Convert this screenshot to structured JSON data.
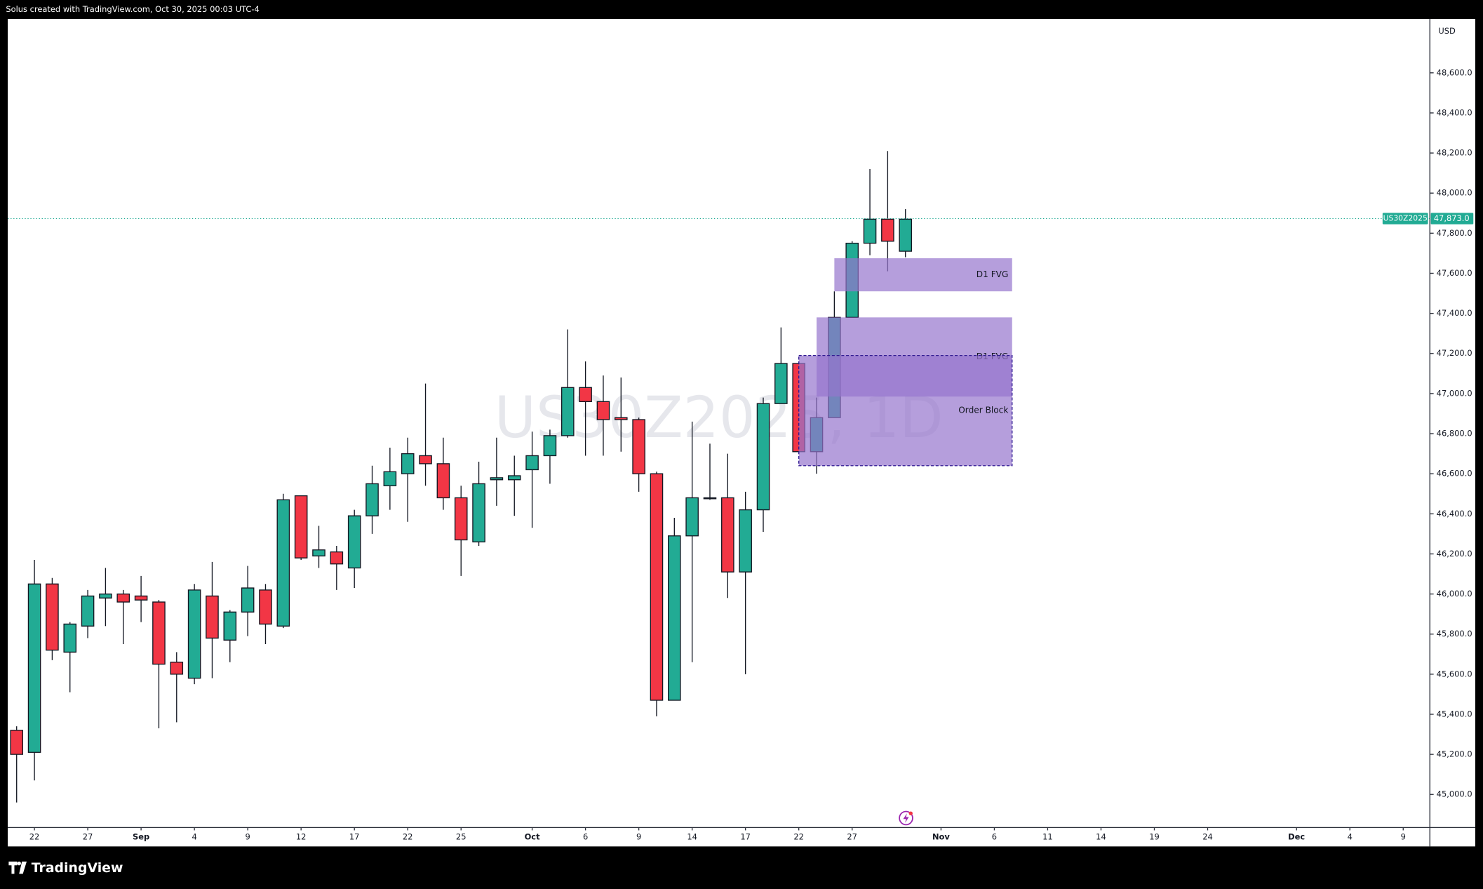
{
  "header": "Solus created with TradingView.com, Oct 30, 2025 00:03 UTC-4",
  "brand": "TradingView",
  "chart_data": {
    "type": "candlestick",
    "watermark": "US30Z2025, 1D",
    "currency": "USD",
    "symbol": "US30Z2025",
    "up_color": "#22ab94",
    "down_color": "#f23645",
    "x": [
      "2025-08-21",
      "2025-08-22",
      "2025-08-25",
      "2025-08-26",
      "2025-08-27",
      "2025-08-28",
      "2025-08-29",
      "2025-09-01",
      "2025-09-02",
      "2025-09-03",
      "2025-09-04",
      "2025-09-05",
      "2025-09-08",
      "2025-09-09",
      "2025-09-10",
      "2025-09-11",
      "2025-09-12",
      "2025-09-15",
      "2025-09-16",
      "2025-09-17",
      "2025-09-18",
      "2025-09-19",
      "2025-09-22",
      "2025-09-23",
      "2025-09-24",
      "2025-09-25",
      "2025-09-26",
      "2025-09-29",
      "2025-09-30",
      "2025-10-01",
      "2025-10-02",
      "2025-10-03",
      "2025-10-06",
      "2025-10-07",
      "2025-10-08",
      "2025-10-09",
      "2025-10-10",
      "2025-10-13",
      "2025-10-14",
      "2025-10-15",
      "2025-10-16",
      "2025-10-17",
      "2025-10-20",
      "2025-10-21",
      "2025-10-22",
      "2025-10-23",
      "2025-10-24",
      "2025-10-27",
      "2025-10-28",
      "2025-10-29",
      "2025-10-30"
    ],
    "open": [
      45320,
      45210,
      46050,
      45710,
      45840,
      45980,
      46000,
      45990,
      45960,
      45660,
      45580,
      45990,
      45770,
      45910,
      46020,
      45840,
      46490,
      46190,
      46210,
      46130,
      46390,
      46540,
      46600,
      46690,
      46650,
      46480,
      46260,
      46570,
      46570,
      46620,
      46690,
      46790,
      47030,
      46960,
      46880,
      46870,
      46600,
      45470,
      46290,
      46480,
      46480,
      46110,
      46420,
      46950,
      47150,
      46710,
      46880,
      47380,
      47750,
      47870,
      47710
    ],
    "high": [
      45340,
      46170,
      46080,
      45860,
      46020,
      46130,
      46020,
      46090,
      45970,
      45710,
      46050,
      46160,
      45920,
      46140,
      46050,
      46500,
      46490,
      46340,
      46240,
      46420,
      46640,
      46730,
      46780,
      47050,
      46780,
      46540,
      46660,
      46780,
      46690,
      46810,
      46820,
      47320,
      47160,
      47090,
      47080,
      46880,
      46610,
      46380,
      46860,
      46750,
      46700,
      46510,
      46980,
      47330,
      47160,
      46980,
      47510,
      47760,
      48120,
      48210,
      47920
    ],
    "low": [
      44960,
      45070,
      45670,
      45510,
      45780,
      45840,
      45750,
      45860,
      45330,
      45360,
      45550,
      45580,
      45660,
      45790,
      45750,
      45830,
      46170,
      46130,
      46020,
      46030,
      46300,
      46420,
      46360,
      46540,
      46420,
      46090,
      46240,
      46440,
      46390,
      46330,
      46550,
      46780,
      46690,
      46690,
      46710,
      46510,
      45390,
      45470,
      45660,
      46470,
      45980,
      45600,
      46310,
      46950,
      46700,
      46600,
      46880,
      47380,
      47690,
      47610,
      47680
    ],
    "close": [
      45200,
      46050,
      45720,
      45850,
      45990,
      46000,
      45960,
      45970,
      45650,
      45600,
      46020,
      45780,
      45910,
      46030,
      45850,
      46470,
      46180,
      46220,
      46150,
      46390,
      46550,
      46610,
      46700,
      46650,
      46480,
      46270,
      46550,
      46580,
      46590,
      46690,
      46790,
      47030,
      46960,
      46870,
      46870,
      46600,
      45470,
      46290,
      46480,
      46480,
      46110,
      46420,
      46950,
      47150,
      46710,
      46880,
      47380,
      47750,
      47870,
      47760,
      47870
    ],
    "last_price": {
      "value": 47873,
      "label": "47,873.0"
    },
    "zones": [
      {
        "label": "D1 FVG",
        "top": 47675,
        "bottom": 47510,
        "start": "2025-10-24",
        "end": "2025-11-07",
        "color": "#9575cd",
        "dashed": false
      },
      {
        "label": "D1 FVG",
        "top": 47380,
        "bottom": 46985,
        "start": "2025-10-23",
        "end": "2025-11-07",
        "color": "#9575cd",
        "dashed": false
      },
      {
        "label": "Order Block",
        "top": 47190,
        "bottom": 46640,
        "start": "2025-10-22",
        "end": "2025-11-07",
        "color": "#9575cd",
        "dashed": true
      }
    ],
    "xlim": [
      "2025-08-21",
      "2025-12-10"
    ],
    "xticks": [
      {
        "value": "2025-08-22",
        "label": "22"
      },
      {
        "value": "2025-08-27",
        "label": "27"
      },
      {
        "value": "2025-09-01",
        "label": "Sep"
      },
      {
        "value": "2025-09-04",
        "label": "4"
      },
      {
        "value": "2025-09-09",
        "label": "9"
      },
      {
        "value": "2025-09-12",
        "label": "12"
      },
      {
        "value": "2025-09-17",
        "label": "17"
      },
      {
        "value": "2025-09-22",
        "label": "22"
      },
      {
        "value": "2025-09-25",
        "label": "25"
      },
      {
        "value": "2025-10-01",
        "label": "Oct"
      },
      {
        "value": "2025-10-06",
        "label": "6"
      },
      {
        "value": "2025-10-09",
        "label": "9"
      },
      {
        "value": "2025-10-14",
        "label": "14"
      },
      {
        "value": "2025-10-17",
        "label": "17"
      },
      {
        "value": "2025-10-22",
        "label": "22"
      },
      {
        "value": "2025-10-27",
        "label": "27"
      },
      {
        "value": "2025-11-03",
        "label": "Nov"
      },
      {
        "value": "2025-11-06",
        "label": "6"
      },
      {
        "value": "2025-11-11",
        "label": "11"
      },
      {
        "value": "2025-11-14",
        "label": "14"
      },
      {
        "value": "2025-11-19",
        "label": "19"
      },
      {
        "value": "2025-11-24",
        "label": "24"
      },
      {
        "value": "2025-12-01",
        "label": "Dec"
      },
      {
        "value": "2025-12-04",
        "label": "4"
      },
      {
        "value": "2025-12-09",
        "label": "9"
      }
    ],
    "ylim": [
      44835,
      48869
    ],
    "yticks": [
      {
        "value": 45000,
        "label": "45,000.0"
      },
      {
        "value": 45200,
        "label": "45,200.0"
      },
      {
        "value": 45400,
        "label": "45,400.0"
      },
      {
        "value": 45600,
        "label": "45,600.0"
      },
      {
        "value": 45800,
        "label": "45,800.0"
      },
      {
        "value": 46000,
        "label": "46,000.0"
      },
      {
        "value": 46200,
        "label": "46,200.0"
      },
      {
        "value": 46400,
        "label": "46,400.0"
      },
      {
        "value": 46600,
        "label": "46,600.0"
      },
      {
        "value": 46800,
        "label": "46,800.0"
      },
      {
        "value": 47000,
        "label": "47,000.0"
      },
      {
        "value": 47200,
        "label": "47,200.0"
      },
      {
        "value": 47400,
        "label": "47,400.0"
      },
      {
        "value": 47600,
        "label": "47,600.0"
      },
      {
        "value": 47800,
        "label": "47,800.0"
      },
      {
        "value": 48000,
        "label": "48,000.0"
      },
      {
        "value": 48200,
        "label": "48,200.0"
      },
      {
        "value": 48400,
        "label": "48,400.0"
      },
      {
        "value": 48600,
        "label": "48,600.0"
      }
    ]
  }
}
